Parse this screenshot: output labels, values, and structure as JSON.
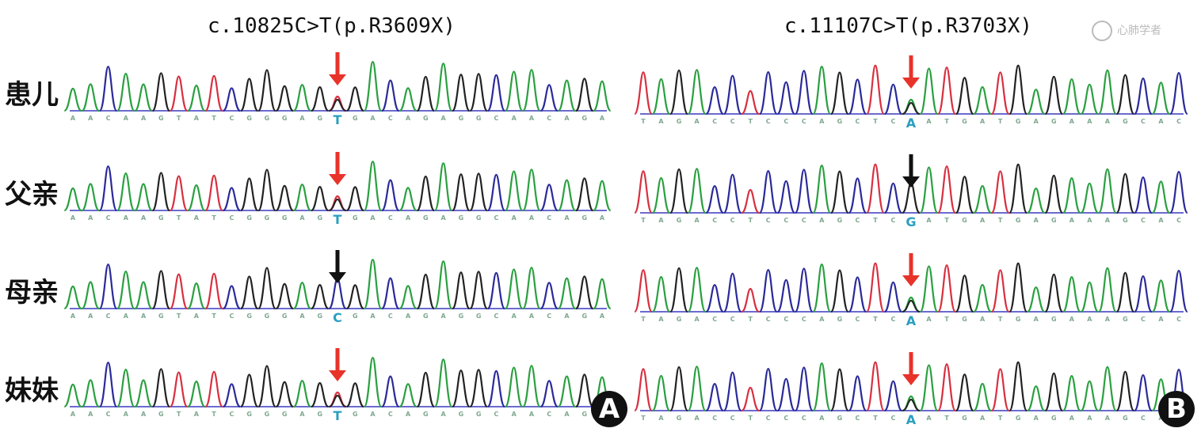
{
  "panels": [
    {
      "id": "A",
      "title": "c.10825C>T(p.R3609X)",
      "bases": "AACAAGTATCGGGAGTGACAGAGGCAACAGA",
      "variant_index": 15,
      "rows": [
        {
          "label": "患儿",
          "variant_base": "T",
          "arrow": "red",
          "heterozygous": true
        },
        {
          "label": "父亲",
          "variant_base": "T",
          "arrow": "red",
          "heterozygous": true
        },
        {
          "label": "母亲",
          "variant_base": "C",
          "arrow": "black",
          "heterozygous": false
        },
        {
          "label": "妹妹",
          "variant_base": "T",
          "arrow": "red",
          "heterozygous": true
        }
      ]
    },
    {
      "id": "B",
      "title": "c.11107C>T(p.R3703X)",
      "bases": "TAGACCTCCCAGCTCAATGATGAGAAAGCAC",
      "variant_index": 15,
      "rows": [
        {
          "label": "患儿",
          "variant_base": "A",
          "arrow": "red",
          "heterozygous": true
        },
        {
          "label": "父亲",
          "variant_base": "G",
          "arrow": "black",
          "heterozygous": false
        },
        {
          "label": "母亲",
          "variant_base": "A",
          "arrow": "red",
          "heterozygous": true
        },
        {
          "label": "妹妹",
          "variant_base": "A",
          "arrow": "red",
          "heterozygous": true
        }
      ]
    }
  ],
  "colors": {
    "A": "#2aa040",
    "C": "#2a2a9a",
    "G": "#222222",
    "T": "#d83040",
    "arrow_red": "#e8332a",
    "arrow_black": "#111111",
    "baseline": "#6a6ad0",
    "variant_letter": "#2a9fc0"
  },
  "watermark": "心肺学者",
  "icons": [
    "arrow-down-icon"
  ]
}
